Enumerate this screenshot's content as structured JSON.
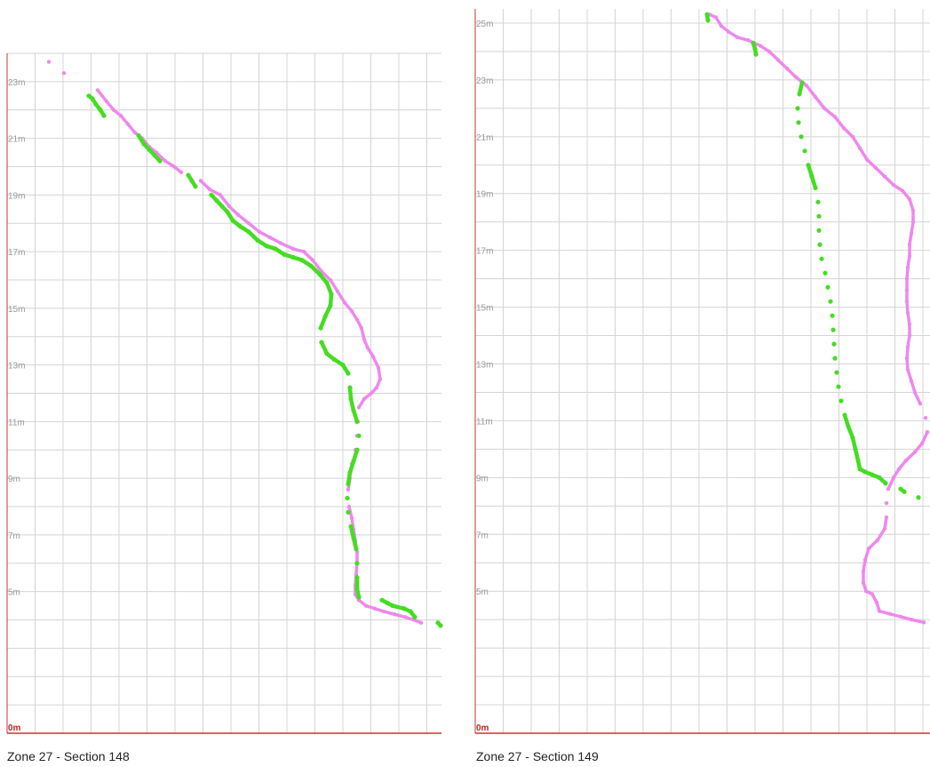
{
  "chart_data": [
    {
      "type": "scatter",
      "title": "Zone 27 - Section 148",
      "xlabel": "",
      "ylabel": "",
      "ylim": [
        0,
        24
      ],
      "y_ticks": [
        "0m",
        "5m",
        "7m",
        "9m",
        "11m",
        "13m",
        "15m",
        "17m",
        "19m",
        "21m",
        "23m"
      ],
      "grid": true,
      "colors": {
        "series_1": "#44dd22",
        "series_2": "#ee88ee",
        "axis": "#cc3333",
        "zero_label": "#cc2222"
      },
      "series": [
        {
          "points": [
            [
              100,
              22.5
            ],
            [
              104,
              22.4
            ],
            [
              108,
              22.2
            ],
            [
              113,
              22.0
            ],
            [
              117,
              21.8
            ],
            [
              156,
              21.1
            ],
            [
              162,
              20.8
            ],
            [
              168,
              20.6
            ],
            [
              174,
              20.4
            ],
            [
              180,
              20.2
            ],
            [
              212,
              19.7
            ],
            [
              216,
              19.5
            ],
            [
              220,
              19.3
            ],
            [
              238,
              19.0
            ],
            [
              244,
              18.8
            ],
            [
              250,
              18.6
            ],
            [
              256,
              18.4
            ],
            [
              262,
              18.1
            ],
            [
              270,
              17.9
            ],
            [
              280,
              17.7
            ],
            [
              290,
              17.4
            ],
            [
              300,
              17.2
            ],
            [
              310,
              17.1
            ],
            [
              320,
              16.9
            ],
            [
              330,
              16.8
            ],
            [
              340,
              16.7
            ],
            [
              350,
              16.5
            ],
            [
              360,
              16.2
            ],
            [
              368,
              15.9
            ],
            [
              373,
              15.5
            ],
            [
              372,
              15.1
            ],
            [
              366,
              14.7
            ],
            [
              361,
              14.3
            ],
            [
              362,
              13.8
            ],
            [
              368,
              13.4
            ],
            [
              376,
              13.2
            ],
            [
              386,
              13.0
            ],
            [
              392,
              12.7
            ],
            [
              394,
              12.2
            ],
            [
              395,
              11.8
            ],
            [
              398,
              11.4
            ],
            [
              402,
              11.0
            ],
            [
              404,
              10.5
            ],
            [
              402,
              10.0
            ],
            [
              398,
              9.6
            ],
            [
              394,
              9.2
            ],
            [
              392,
              8.8
            ],
            [
              391,
              8.3
            ],
            [
              392,
              7.8
            ],
            [
              395,
              7.3
            ],
            [
              398,
              6.9
            ],
            [
              401,
              6.5
            ],
            [
              402,
              6.0
            ],
            [
              402,
              5.5
            ],
            [
              402,
              5.1
            ],
            [
              404,
              4.8
            ],
            [
              430,
              4.7
            ],
            [
              436,
              4.6
            ],
            [
              442,
              4.5
            ],
            [
              455,
              4.4
            ],
            [
              462,
              4.3
            ],
            [
              467,
              4.1
            ],
            [
              493,
              3.9
            ],
            [
              496,
              3.8
            ]
          ]
        },
        {
          "points": [
            [
              55,
              23.7
            ],
            [
              72,
              23.3
            ],
            [
              110,
              22.7
            ],
            [
              120,
              22.3
            ],
            [
              128,
              22.0
            ],
            [
              136,
              21.8
            ],
            [
              144,
              21.5
            ],
            [
              152,
              21.2
            ],
            [
              160,
              21.0
            ],
            [
              168,
              20.7
            ],
            [
              176,
              20.5
            ],
            [
              186,
              20.2
            ],
            [
              196,
              20.0
            ],
            [
              204,
              19.8
            ],
            [
              226,
              19.5
            ],
            [
              236,
              19.2
            ],
            [
              248,
              19.0
            ],
            [
              258,
              18.6
            ],
            [
              268,
              18.3
            ],
            [
              280,
              18.0
            ],
            [
              292,
              17.7
            ],
            [
              304,
              17.5
            ],
            [
              316,
              17.3
            ],
            [
              330,
              17.1
            ],
            [
              342,
              17.0
            ],
            [
              352,
              16.7
            ],
            [
              362,
              16.3
            ],
            [
              372,
              16.0
            ],
            [
              380,
              15.6
            ],
            [
              388,
              15.2
            ],
            [
              396,
              14.9
            ],
            [
              402,
              14.6
            ],
            [
              407,
              14.3
            ],
            [
              410,
              13.9
            ],
            [
              414,
              13.6
            ],
            [
              420,
              13.3
            ],
            [
              426,
              12.9
            ],
            [
              428,
              12.5
            ],
            [
              424,
              12.2
            ],
            [
              418,
              12.0
            ],
            [
              410,
              11.8
            ],
            [
              404,
              11.5
            ],
            [
              403,
              11.0
            ],
            [
              402,
              10.5
            ],
            [
              400,
              10.0
            ],
            [
              396,
              9.5
            ],
            [
              394,
              9.0
            ],
            [
              392,
              8.6
            ],
            [
              393,
              8.0
            ],
            [
              396,
              7.6
            ],
            [
              398,
              7.2
            ],
            [
              400,
              6.8
            ],
            [
              402,
              6.4
            ],
            [
              402,
              6.0
            ],
            [
              401,
              5.6
            ],
            [
              400,
              5.2
            ],
            [
              400,
              4.9
            ],
            [
              404,
              4.7
            ],
            [
              412,
              4.5
            ],
            [
              422,
              4.4
            ],
            [
              432,
              4.3
            ],
            [
              444,
              4.2
            ],
            [
              456,
              4.1
            ],
            [
              466,
              4.0
            ],
            [
              474,
              3.9
            ]
          ]
        }
      ]
    },
    {
      "type": "scatter",
      "title": "Zone 27 - Section 149",
      "xlabel": "",
      "ylabel": "",
      "ylim": [
        0,
        25.5
      ],
      "y_ticks": [
        "0m",
        "5m",
        "7m",
        "9m",
        "11m",
        "13m",
        "15m",
        "17m",
        "19m",
        "21m",
        "23m",
        "25m"
      ],
      "grid": true,
      "colors": {
        "series_1": "#44dd22",
        "series_2": "#ee88ee",
        "axis": "#cc3333",
        "zero_label": "#cc2222"
      },
      "series": [
        {
          "points": [
            [
              796,
              25.3
            ],
            [
              797,
              25.1
            ],
            [
              848,
              24.3
            ],
            [
              850,
              24.1
            ],
            [
              851,
              23.9
            ],
            [
              903,
              22.9
            ],
            [
              900,
              22.5
            ],
            [
              898,
              22.0
            ],
            [
              899,
              21.5
            ],
            [
              902,
              21.0
            ],
            [
              906,
              20.5
            ],
            [
              910,
              20.0
            ],
            [
              914,
              19.6
            ],
            [
              918,
              19.2
            ],
            [
              921,
              18.7
            ],
            [
              922,
              18.2
            ],
            [
              922,
              17.7
            ],
            [
              923,
              17.2
            ],
            [
              925,
              16.7
            ],
            [
              929,
              16.2
            ],
            [
              932,
              15.7
            ],
            [
              935,
              15.2
            ],
            [
              937,
              14.7
            ],
            [
              938,
              14.2
            ],
            [
              939,
              13.7
            ],
            [
              940,
              13.2
            ],
            [
              942,
              12.7
            ],
            [
              944,
              12.2
            ],
            [
              947,
              11.7
            ],
            [
              951,
              11.2
            ],
            [
              955,
              10.8
            ],
            [
              960,
              10.4
            ],
            [
              963,
              10.0
            ],
            [
              966,
              9.6
            ],
            [
              968,
              9.3
            ],
            [
              974,
              9.2
            ],
            [
              982,
              9.1
            ],
            [
              990,
              9.0
            ],
            [
              997,
              8.8
            ],
            [
              1014,
              8.6
            ],
            [
              1018,
              8.5
            ],
            [
              1034,
              8.3
            ]
          ]
        },
        {
          "points": [
            [
              799,
              25.3
            ],
            [
              806,
              25.2
            ],
            [
              812,
              24.9
            ],
            [
              820,
              24.7
            ],
            [
              830,
              24.5
            ],
            [
              842,
              24.4
            ],
            [
              856,
              24.2
            ],
            [
              866,
              24.0
            ],
            [
              876,
              23.7
            ],
            [
              886,
              23.4
            ],
            [
              896,
              23.1
            ],
            [
              908,
              22.8
            ],
            [
              918,
              22.4
            ],
            [
              928,
              22.0
            ],
            [
              940,
              21.7
            ],
            [
              950,
              21.3
            ],
            [
              960,
              21.0
            ],
            [
              968,
              20.6
            ],
            [
              976,
              20.2
            ],
            [
              986,
              19.9
            ],
            [
              996,
              19.6
            ],
            [
              1006,
              19.3
            ],
            [
              1016,
              19.1
            ],
            [
              1024,
              18.8
            ],
            [
              1028,
              18.4
            ],
            [
              1028,
              18.0
            ],
            [
              1026,
              17.6
            ],
            [
              1024,
              17.2
            ],
            [
              1024,
              16.8
            ],
            [
              1022,
              16.4
            ],
            [
              1021,
              16.0
            ],
            [
              1021,
              15.6
            ],
            [
              1021,
              15.2
            ],
            [
              1022,
              14.8
            ],
            [
              1024,
              14.4
            ],
            [
              1024,
              14.0
            ],
            [
              1022,
              13.6
            ],
            [
              1021,
              13.2
            ],
            [
              1022,
              12.8
            ],
            [
              1026,
              12.4
            ],
            [
              1030,
              12.0
            ],
            [
              1036,
              11.6
            ],
            [
              1042,
              11.1
            ],
            [
              1044,
              10.6
            ],
            [
              1038,
              10.2
            ],
            [
              1030,
              9.9
            ],
            [
              1020,
              9.6
            ],
            [
              1012,
              9.3
            ],
            [
              1006,
              9.0
            ],
            [
              1000,
              8.6
            ],
            [
              998,
              8.1
            ],
            [
              998,
              7.6
            ],
            [
              996,
              7.2
            ],
            [
              988,
              6.8
            ],
            [
              978,
              6.5
            ],
            [
              974,
              6.1
            ],
            [
              972,
              5.7
            ],
            [
              972,
              5.3
            ],
            [
              975,
              5.0
            ],
            [
              982,
              4.9
            ],
            [
              987,
              4.6
            ],
            [
              990,
              4.3
            ],
            [
              1002,
              4.2
            ],
            [
              1014,
              4.1
            ],
            [
              1026,
              4.0
            ],
            [
              1040,
              3.9
            ]
          ]
        }
      ]
    }
  ]
}
